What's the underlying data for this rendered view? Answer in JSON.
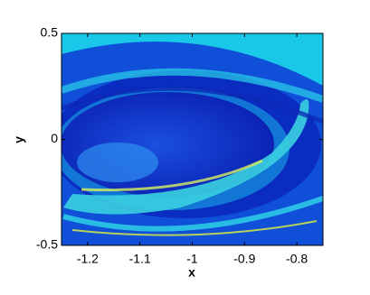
{
  "chart_data": {
    "type": "image",
    "x_label": "x",
    "y_label": "y",
    "xlim": [
      -1.25,
      -0.75
    ],
    "xticks": [
      -1.2,
      -1.1,
      -1,
      -0.9,
      -0.8
    ],
    "ylim": [
      -0.5,
      0.5
    ],
    "yticks": [
      -0.5,
      0,
      0.5
    ]
  }
}
